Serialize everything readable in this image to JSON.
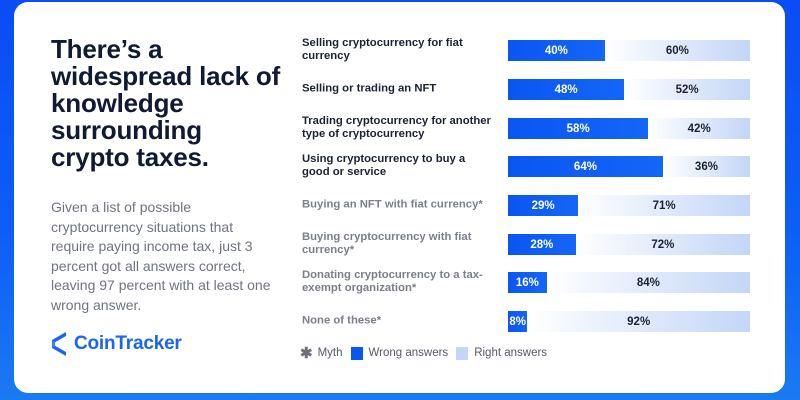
{
  "headline": "There’s a widespread lack of knowledge surrounding crypto taxes.",
  "description": "Given a list of possible cryptocurrency situations that require paying income tax, just 3 percent got all answers correct, leaving 97 percent with at least one wrong answer.",
  "brand": {
    "name": "CoinTracker",
    "color": "#1a66ee"
  },
  "colors": {
    "wrong": "#0a56f2",
    "right": "#c3d6f7",
    "background": "#0a4cf5"
  },
  "rows": [
    {
      "label": "Selling cryptocurrency for fiat currency",
      "wrong": 40,
      "right": 60,
      "wrong_label": "40%",
      "right_label": "60%",
      "myth": false
    },
    {
      "label": "Selling or trading an NFT",
      "wrong": 48,
      "right": 52,
      "wrong_label": "48%",
      "right_label": "52%",
      "myth": false
    },
    {
      "label": "Trading cryptocurrency for another type of cryptocurrency",
      "wrong": 58,
      "right": 42,
      "wrong_label": "58%",
      "right_label": "42%",
      "myth": false
    },
    {
      "label": "Using cryptocurrency to buy a good or service",
      "wrong": 64,
      "right": 36,
      "wrong_label": "64%",
      "right_label": "36%",
      "myth": false
    },
    {
      "label": "Buying an NFT with fiat currency*",
      "wrong": 29,
      "right": 71,
      "wrong_label": "29%",
      "right_label": "71%",
      "myth": true
    },
    {
      "label": "Buying cryptocurrency with fiat currency*",
      "wrong": 28,
      "right": 72,
      "wrong_label": "28%",
      "right_label": "72%",
      "myth": true
    },
    {
      "label": "Donating cryptocurrency to a tax-exempt organization*",
      "wrong": 16,
      "right": 84,
      "wrong_label": "16%",
      "right_label": "84%",
      "myth": true
    },
    {
      "label": "None of these*",
      "wrong": 8,
      "right": 92,
      "wrong_label": "8%",
      "right_label": "92%",
      "myth": true
    }
  ],
  "legend": {
    "myth_symbol": "✱",
    "myth": "Myth",
    "wrong": "Wrong answers",
    "right": "Right answers"
  },
  "chart_data": {
    "type": "bar",
    "orientation": "horizontal",
    "stacked": true,
    "title": "There’s a widespread lack of knowledge surrounding crypto taxes.",
    "categories": [
      "Selling cryptocurrency for fiat currency",
      "Selling or trading an NFT",
      "Trading cryptocurrency for another type of cryptocurrency",
      "Using cryptocurrency to buy a good or service",
      "Buying an NFT with fiat currency*",
      "Buying cryptocurrency with fiat currency*",
      "Donating cryptocurrency to a tax-exempt organization*",
      "None of these*"
    ],
    "series": [
      {
        "name": "Wrong answers",
        "color": "#0a56f2",
        "values": [
          40,
          48,
          58,
          64,
          29,
          28,
          16,
          8
        ]
      },
      {
        "name": "Right answers",
        "color": "#c3d6f7",
        "values": [
          60,
          52,
          42,
          36,
          71,
          72,
          84,
          92
        ]
      }
    ],
    "annotations": [
      "* Myth"
    ],
    "xlim": [
      0,
      100
    ],
    "unit": "%",
    "grid": false,
    "legend_position": "bottom"
  }
}
